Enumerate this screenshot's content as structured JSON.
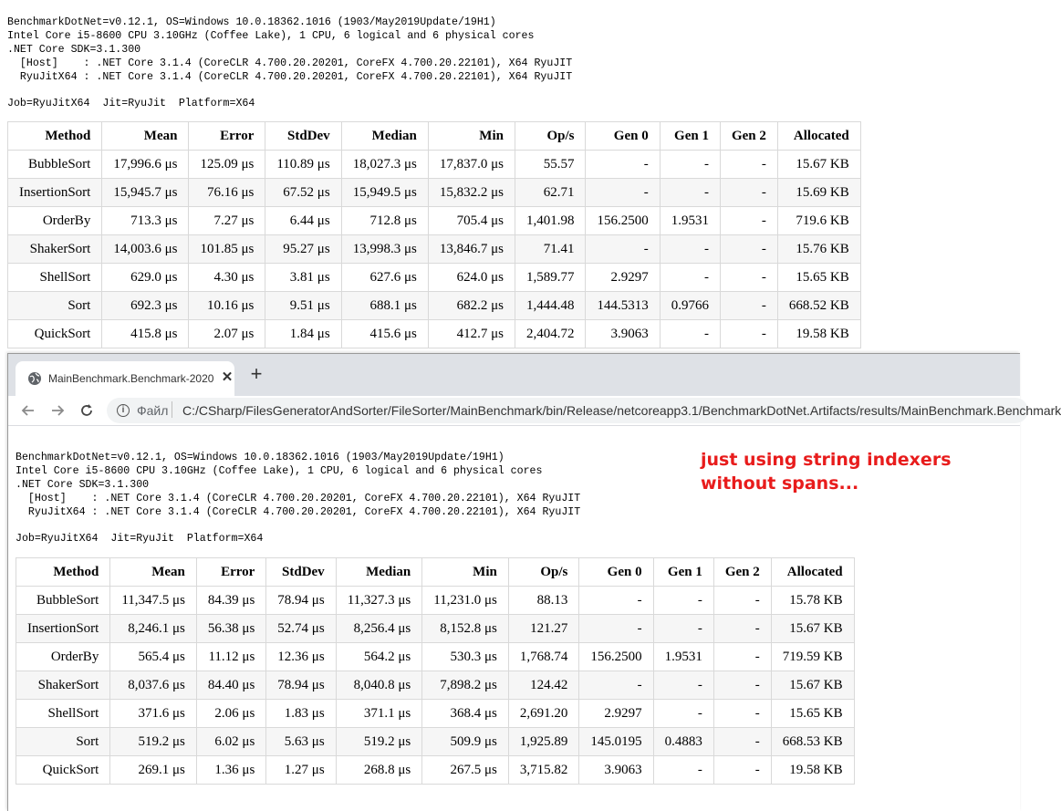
{
  "columns": [
    "Method",
    "Mean",
    "Error",
    "StdDev",
    "Median",
    "Min",
    "Op/s",
    "Gen 0",
    "Gen 1",
    "Gen 2",
    "Allocated"
  ],
  "top": {
    "env_lines": [
      "BenchmarkDotNet=v0.12.1, OS=Windows 10.0.18362.1016 (1903/May2019Update/19H1)",
      "Intel Core i5-8600 CPU 3.10GHz (Coffee Lake), 1 CPU, 6 logical and 6 physical cores",
      ".NET Core SDK=3.1.300",
      "  [Host]    : .NET Core 3.1.4 (CoreCLR 4.700.20.20201, CoreFX 4.700.20.22101), X64 RyuJIT",
      "  RyuJitX64 : .NET Core 3.1.4 (CoreCLR 4.700.20.20201, CoreFX 4.700.20.22101), X64 RyuJIT"
    ],
    "job_line": "Job=RyuJitX64  Jit=RyuJit  Platform=X64",
    "rows": [
      [
        "BubbleSort",
        "17,996.6 μs",
        "125.09 μs",
        "110.89 μs",
        "18,027.3 μs",
        "17,837.0 μs",
        "55.57",
        "-",
        "-",
        "-",
        "15.67 KB"
      ],
      [
        "InsertionSort",
        "15,945.7 μs",
        "76.16 μs",
        "67.52 μs",
        "15,949.5 μs",
        "15,832.2 μs",
        "62.71",
        "-",
        "-",
        "-",
        "15.69 KB"
      ],
      [
        "OrderBy",
        "713.3 μs",
        "7.27 μs",
        "6.44 μs",
        "712.8 μs",
        "705.4 μs",
        "1,401.98",
        "156.2500",
        "1.9531",
        "-",
        "719.6 KB"
      ],
      [
        "ShakerSort",
        "14,003.6 μs",
        "101.85 μs",
        "95.27 μs",
        "13,998.3 μs",
        "13,846.7 μs",
        "71.41",
        "-",
        "-",
        "-",
        "15.76 KB"
      ],
      [
        "ShellSort",
        "629.0 μs",
        "4.30 μs",
        "3.81 μs",
        "627.6 μs",
        "624.0 μs",
        "1,589.77",
        "2.9297",
        "-",
        "-",
        "15.65 KB"
      ],
      [
        "Sort",
        "692.3 μs",
        "10.16 μs",
        "9.51 μs",
        "688.1 μs",
        "682.2 μs",
        "1,444.48",
        "144.5313",
        "0.9766",
        "-",
        "668.52 KB"
      ],
      [
        "QuickSort",
        "415.8 μs",
        "2.07 μs",
        "1.84 μs",
        "415.6 μs",
        "412.7 μs",
        "2,404.72",
        "3.9063",
        "-",
        "-",
        "19.58 KB"
      ]
    ]
  },
  "browser": {
    "tab_title": "MainBenchmark.Benchmark-2020",
    "tab_close": "✕",
    "new_tab": "+",
    "scheme_label": "Файл",
    "url": "C:/CSharp/FilesGeneratorAndSorter/FileSorter/MainBenchmark/bin/Release/netcoreapp3.1/BenchmarkDotNet.Artifacts/results/MainBenchmark.Benchmark",
    "icons": {
      "back": "back-arrow-icon",
      "forward": "forward-arrow-icon",
      "reload": "reload-icon",
      "info": "info-icon",
      "globe": "globe-icon"
    }
  },
  "bottom": {
    "env_lines": [
      "BenchmarkDotNet=v0.12.1, OS=Windows 10.0.18362.1016 (1903/May2019Update/19H1)",
      "Intel Core i5-8600 CPU 3.10GHz (Coffee Lake), 1 CPU, 6 logical and 6 physical cores",
      ".NET Core SDK=3.1.300",
      "  [Host]    : .NET Core 3.1.4 (CoreCLR 4.700.20.20201, CoreFX 4.700.20.22101), X64 RyuJIT",
      "  RyuJitX64 : .NET Core 3.1.4 (CoreCLR 4.700.20.20201, CoreFX 4.700.20.22101), X64 RyuJIT"
    ],
    "job_line": "Job=RyuJitX64  Jit=RyuJit  Platform=X64",
    "rows": [
      [
        "BubbleSort",
        "11,347.5 μs",
        "84.39 μs",
        "78.94 μs",
        "11,327.3 μs",
        "11,231.0 μs",
        "88.13",
        "-",
        "-",
        "-",
        "15.78 KB"
      ],
      [
        "InsertionSort",
        "8,246.1 μs",
        "56.38 μs",
        "52.74 μs",
        "8,256.4 μs",
        "8,152.8 μs",
        "121.27",
        "-",
        "-",
        "-",
        "15.67 KB"
      ],
      [
        "OrderBy",
        "565.4 μs",
        "11.12 μs",
        "12.36 μs",
        "564.2 μs",
        "530.3 μs",
        "1,768.74",
        "156.2500",
        "1.9531",
        "-",
        "719.59 KB"
      ],
      [
        "ShakerSort",
        "8,037.6 μs",
        "84.40 μs",
        "78.94 μs",
        "8,040.8 μs",
        "7,898.2 μs",
        "124.42",
        "-",
        "-",
        "-",
        "15.67 KB"
      ],
      [
        "ShellSort",
        "371.6 μs",
        "2.06 μs",
        "1.83 μs",
        "371.1 μs",
        "368.4 μs",
        "2,691.20",
        "2.9297",
        "-",
        "-",
        "15.65 KB"
      ],
      [
        "Sort",
        "519.2 μs",
        "6.02 μs",
        "5.63 μs",
        "519.2 μs",
        "509.9 μs",
        "1,925.89",
        "145.0195",
        "0.4883",
        "-",
        "668.53 KB"
      ],
      [
        "QuickSort",
        "269.1 μs",
        "1.36 μs",
        "1.27 μs",
        "268.8 μs",
        "267.5 μs",
        "3,715.82",
        "3.9063",
        "-",
        "-",
        "19.58 KB"
      ]
    ],
    "annotation": "just using string indexers without spans...",
    "annotation_color": "#e81c1c"
  }
}
